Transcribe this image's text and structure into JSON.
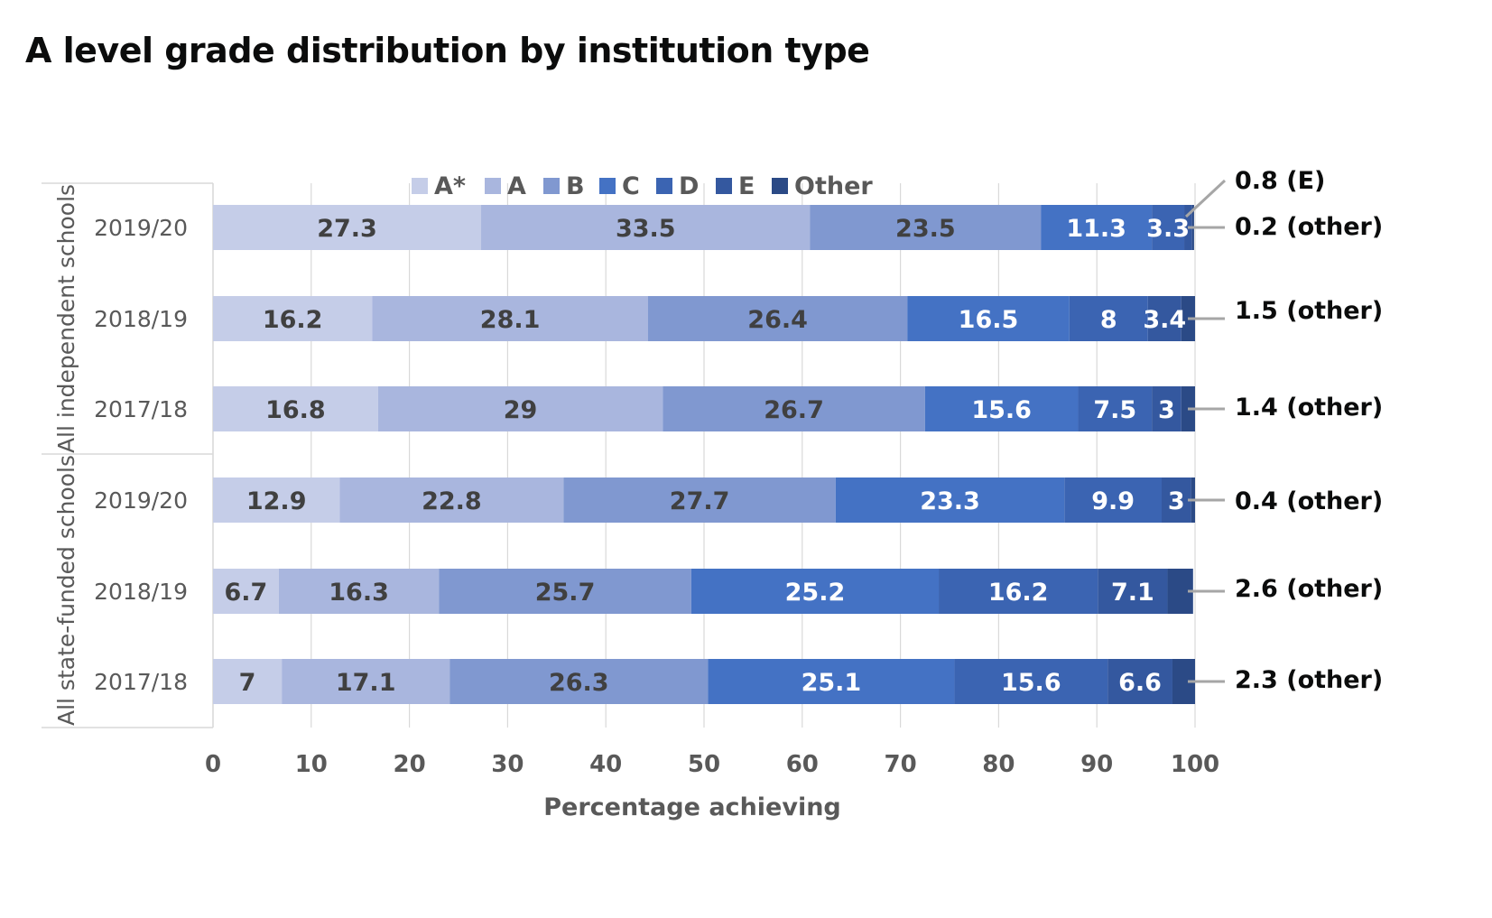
{
  "title": "A level grade distribution by institution type",
  "chart_data": {
    "type": "bar",
    "orientation": "horizontal",
    "stacked": true,
    "title": "A level grade distribution by institution type",
    "xlabel": "Percentage achieving",
    "ylabel": "",
    "xlim": [
      0,
      100
    ],
    "xticks": [
      "0",
      "10",
      "20",
      "30",
      "40",
      "50",
      "60",
      "70",
      "80",
      "90",
      "100"
    ],
    "grid": "vertical",
    "legend": {
      "position": "top",
      "entries": [
        "A*",
        "A",
        "B",
        "C",
        "D",
        "E",
        "Other"
      ]
    },
    "groups": [
      {
        "name": "All independent schools",
        "categories": [
          "2019/20",
          "2018/19",
          "2017/18"
        ]
      },
      {
        "name": "All state-funded schools",
        "categories": [
          "2019/20",
          "2018/19",
          "2017/18"
        ]
      }
    ],
    "series": [
      {
        "name": "A*",
        "color": "#c5cde8",
        "label_color": "#404040",
        "values": [
          27.3,
          16.2,
          16.8,
          12.9,
          6.7,
          7
        ]
      },
      {
        "name": "A",
        "color": "#a9b6de",
        "label_color": "#404040",
        "values": [
          33.5,
          28.1,
          29,
          22.8,
          16.3,
          17.1
        ]
      },
      {
        "name": "B",
        "color": "#8098d0",
        "label_color": "#404040",
        "values": [
          23.5,
          26.4,
          26.7,
          27.7,
          25.7,
          26.3
        ]
      },
      {
        "name": "C",
        "color": "#4472c4",
        "label_color": "#ffffff",
        "values": [
          11.3,
          16.5,
          15.6,
          23.3,
          25.2,
          25.1
        ]
      },
      {
        "name": "D",
        "color": "#3b64b2",
        "label_color": "#ffffff",
        "values": [
          3.3,
          8,
          7.5,
          9.9,
          16.2,
          15.6
        ]
      },
      {
        "name": "E",
        "color": "#34589f",
        "label_color": "#ffffff",
        "values": [
          0.8,
          3.4,
          3,
          3,
          7.1,
          6.6
        ]
      },
      {
        "name": "Other",
        "color": "#2b4a86",
        "label_color": "#ffffff",
        "values": [
          0.2,
          1.5,
          1.4,
          0.4,
          2.6,
          2.3
        ]
      }
    ],
    "data_labels": [
      [
        "27.3",
        "33.5",
        "23.5",
        "11.3",
        "3.3",
        "",
        ""
      ],
      [
        "16.2",
        "28.1",
        "26.4",
        "16.5",
        "8",
        "3.4",
        ""
      ],
      [
        "16.8",
        "29",
        "26.7",
        "15.6",
        "7.5",
        "3",
        ""
      ],
      [
        "12.9",
        "22.8",
        "27.7",
        "23.3",
        "9.9",
        "3",
        ""
      ],
      [
        "6.7",
        "16.3",
        "25.7",
        "25.2",
        "16.2",
        "7.1",
        ""
      ],
      [
        "7",
        "17.1",
        "26.3",
        "25.1",
        "15.6",
        "6.6",
        ""
      ]
    ],
    "annotations": [
      {
        "row": 0,
        "text": "0.8 (E)",
        "segment": "E"
      },
      {
        "row": 0,
        "text": "0.2 (other)",
        "segment": "Other"
      },
      {
        "row": 1,
        "text": "1.5 (other)",
        "segment": "Other"
      },
      {
        "row": 2,
        "text": "1.4 (other)",
        "segment": "Other"
      },
      {
        "row": 3,
        "text": "0.4 (other)",
        "segment": "Other"
      },
      {
        "row": 4,
        "text": "2.6 (other)",
        "segment": "Other"
      },
      {
        "row": 5,
        "text": "2.3 (other)",
        "segment": "Other"
      }
    ]
  }
}
